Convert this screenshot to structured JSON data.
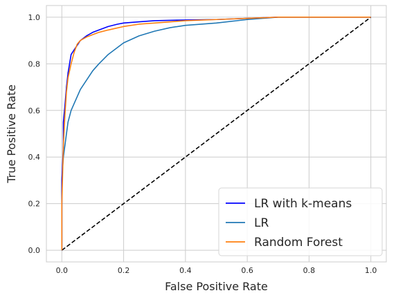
{
  "chart_data": {
    "type": "line",
    "xlabel": "False Positive Rate",
    "ylabel": "True Positive Rate",
    "xlim": [
      -0.05,
      1.05
    ],
    "ylim": [
      -0.05,
      1.05
    ],
    "xticks": [
      "0.0",
      "0.2",
      "0.4",
      "0.6",
      "0.8",
      "1.0"
    ],
    "yticks": [
      "0.0",
      "0.2",
      "0.4",
      "0.6",
      "0.8",
      "1.0"
    ],
    "grid": true,
    "legend_position": "lower-right",
    "series": [
      {
        "name": "LR with k-means",
        "color": "#0000ff",
        "x": [
          0.0,
          0.0,
          0.005,
          0.005,
          0.01,
          0.015,
          0.02,
          0.025,
          0.03,
          0.04,
          0.05,
          0.06,
          0.08,
          0.1,
          0.12,
          0.15,
          0.18,
          0.2,
          0.25,
          0.3,
          0.4,
          0.5,
          0.6,
          0.7,
          1.0
        ],
        "y": [
          0.0,
          0.3,
          0.45,
          0.55,
          0.62,
          0.7,
          0.76,
          0.8,
          0.84,
          0.86,
          0.88,
          0.9,
          0.92,
          0.935,
          0.945,
          0.96,
          0.97,
          0.975,
          0.98,
          0.985,
          0.988,
          0.99,
          0.995,
          1.0,
          1.0
        ]
      },
      {
        "name": "LR",
        "color": "#1f77b4",
        "x": [
          0.0,
          0.0,
          0.005,
          0.01,
          0.015,
          0.02,
          0.03,
          0.04,
          0.05,
          0.06,
          0.08,
          0.1,
          0.12,
          0.15,
          0.18,
          0.2,
          0.25,
          0.3,
          0.35,
          0.4,
          0.5,
          0.6,
          0.7,
          1.0
        ],
        "y": [
          0.0,
          0.3,
          0.4,
          0.45,
          0.5,
          0.55,
          0.6,
          0.63,
          0.66,
          0.69,
          0.73,
          0.77,
          0.8,
          0.84,
          0.87,
          0.89,
          0.92,
          0.94,
          0.955,
          0.965,
          0.975,
          0.99,
          1.0,
          1.0
        ]
      },
      {
        "name": "Random Forest",
        "color": "#ff7f0e",
        "x": [
          0.0,
          0.0,
          0.005,
          0.01,
          0.015,
          0.02,
          0.03,
          0.04,
          0.05,
          0.06,
          0.08,
          0.1,
          0.12,
          0.15,
          0.2,
          0.25,
          0.3,
          0.4,
          0.5,
          0.6,
          0.7,
          1.0
        ],
        "y": [
          0.0,
          0.2,
          0.45,
          0.58,
          0.68,
          0.74,
          0.8,
          0.85,
          0.885,
          0.9,
          0.915,
          0.925,
          0.935,
          0.945,
          0.96,
          0.97,
          0.975,
          0.985,
          0.99,
          0.995,
          1.0,
          1.0
        ]
      }
    ],
    "reference_line": {
      "style": "dashed",
      "color": "#000000",
      "x": [
        0,
        1
      ],
      "y": [
        0,
        1
      ]
    }
  }
}
